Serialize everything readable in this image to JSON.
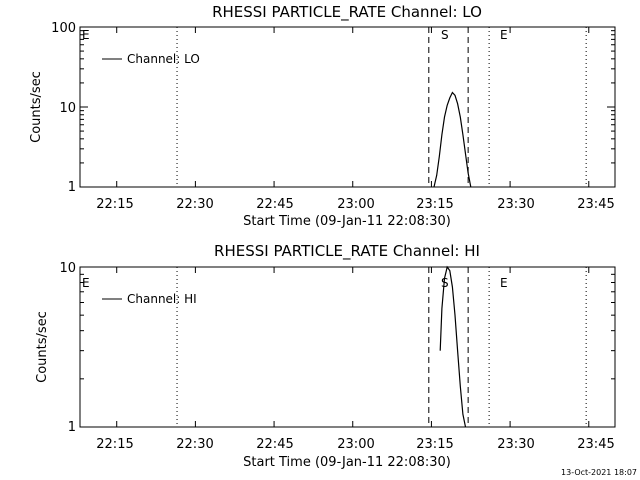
{
  "charts": [
    {
      "title": "RHESSI PARTICLE_RATE Channel: LO",
      "xlabel": "Start Time (09-Jan-11 22:08:30)",
      "ylabel": "Counts/sec",
      "xticks": [
        "22:15",
        "22:30",
        "22:45",
        "23:00",
        "23:15",
        "23:30",
        "23:45"
      ],
      "yticks": [
        "1",
        "10",
        "100"
      ],
      "legend": "Channel: LO",
      "event_labels": {
        "left_e": "E",
        "s": "S",
        "e": "E"
      }
    },
    {
      "title": "RHESSI PARTICLE_RATE Channel: HI",
      "xlabel": "Start Time (09-Jan-11 22:08:30)",
      "ylabel": "Counts/sec",
      "xticks": [
        "22:15",
        "22:30",
        "22:45",
        "23:00",
        "23:15",
        "23:30",
        "23:45"
      ],
      "yticks": [
        "1",
        "10"
      ],
      "legend": "Channel: HI",
      "event_labels": {
        "left_e": "E",
        "s": "S",
        "e": "E"
      }
    }
  ],
  "timestamp": "13-Oct-2021 18:07",
  "chart_data": [
    {
      "type": "line",
      "title": "RHESSI PARTICLE_RATE Channel: LO",
      "xlabel": "Start Time (09-Jan-11 22:08:30)",
      "ylabel": "Counts/sec",
      "yscale": "log",
      "ylim": [
        1,
        100
      ],
      "xlim": [
        "22:08",
        "23:50"
      ],
      "series": [
        {
          "name": "Channel: LO",
          "x": [
            "23:15:30",
            "23:16:00",
            "23:16:30",
            "23:17:00",
            "23:17:30",
            "23:18:00",
            "23:18:30",
            "23:19:00",
            "23:19:30",
            "23:20:00",
            "23:20:30",
            "23:21:00",
            "23:21:30",
            "23:22:00",
            "23:22:30"
          ],
          "values": [
            1.0,
            1.4,
            2.4,
            4.5,
            7.5,
            10.5,
            13.0,
            15.2,
            14.0,
            11.0,
            7.5,
            4.5,
            2.6,
            1.5,
            1.0
          ]
        }
      ],
      "vertical_lines": [
        {
          "label": "",
          "time": "22:26:30",
          "style": "dotted"
        },
        {
          "label": "S",
          "time": "23:14:30",
          "style": "dashed"
        },
        {
          "label": "",
          "time": "23:22:00",
          "style": "dashed"
        },
        {
          "label": "E",
          "time": "23:26:00",
          "style": "dotted"
        },
        {
          "label": "",
          "time": "23:44:30",
          "style": "dotted"
        }
      ],
      "legend_position": "top-left",
      "grid": false
    },
    {
      "type": "line",
      "title": "RHESSI PARTICLE_RATE Channel: HI",
      "xlabel": "Start Time (09-Jan-11 22:08:30)",
      "ylabel": "Counts/sec",
      "yscale": "log",
      "ylim": [
        1,
        10
      ],
      "xlim": [
        "22:08",
        "23:50"
      ],
      "series": [
        {
          "name": "Channel: HI",
          "x": [
            "23:16:40",
            "23:17:00",
            "23:17:30",
            "23:18:00",
            "23:18:30",
            "23:19:00",
            "23:19:30",
            "23:20:00",
            "23:20:30",
            "23:21:00",
            "23:21:30"
          ],
          "values": [
            3.0,
            5.5,
            8.5,
            10.0,
            9.5,
            7.5,
            5.0,
            3.0,
            1.8,
            1.2,
            1.0
          ]
        }
      ],
      "vertical_lines": [
        {
          "label": "",
          "time": "22:26:30",
          "style": "dotted"
        },
        {
          "label": "S",
          "time": "23:14:30",
          "style": "dashed"
        },
        {
          "label": "",
          "time": "23:22:00",
          "style": "dashed"
        },
        {
          "label": "E",
          "time": "23:26:00",
          "style": "dotted"
        },
        {
          "label": "",
          "time": "23:44:30",
          "style": "dotted"
        }
      ],
      "legend_position": "top-left",
      "grid": false
    }
  ]
}
